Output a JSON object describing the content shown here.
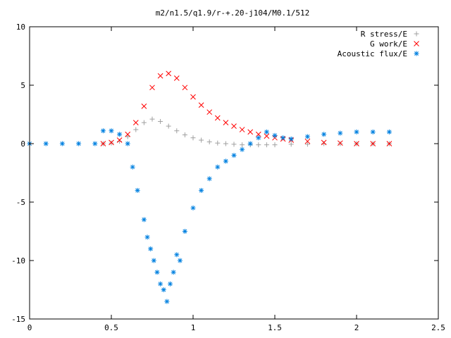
{
  "chart_data": {
    "type": "scatter",
    "title": "m2/n1.5/q1.9/r-+.20-j104/M0.1/512",
    "xlabel": "",
    "ylabel": "",
    "xlim": [
      0,
      2.5
    ],
    "ylim": [
      -15,
      10
    ],
    "xticks": [
      "0",
      "0.5",
      "1",
      "1.5",
      "2",
      "2.5"
    ],
    "yticks": [
      "10",
      "5",
      "0",
      "-5",
      "-10",
      "-15"
    ],
    "grid": false,
    "legend_position": "top-right",
    "series": [
      {
        "name": "R stress/E",
        "marker": "+",
        "color": "#a0a0a0",
        "x": [
          0.45,
          0.5,
          0.55,
          0.6,
          0.65,
          0.7,
          0.75,
          0.8,
          0.85,
          0.9,
          0.95,
          1.0,
          1.05,
          1.1,
          1.15,
          1.2,
          1.25,
          1.3,
          1.35,
          1.4,
          1.45,
          1.5,
          1.6,
          1.7,
          1.8,
          1.9,
          2.0,
          2.1,
          2.2
        ],
        "y": [
          0.0,
          0.05,
          0.2,
          0.6,
          1.2,
          1.8,
          2.1,
          1.9,
          1.5,
          1.1,
          0.75,
          0.5,
          0.3,
          0.15,
          0.05,
          0.0,
          -0.05,
          -0.1,
          -0.1,
          -0.1,
          -0.1,
          -0.1,
          -0.05,
          -0.05,
          0.0,
          0.0,
          0.0,
          0.0,
          0.0
        ]
      },
      {
        "name": "G work/E",
        "marker": "x",
        "color": "#ff0000",
        "x": [
          0.45,
          0.5,
          0.55,
          0.6,
          0.65,
          0.7,
          0.75,
          0.8,
          0.85,
          0.9,
          0.95,
          1.0,
          1.05,
          1.1,
          1.15,
          1.2,
          1.25,
          1.3,
          1.35,
          1.4,
          1.45,
          1.5,
          1.55,
          1.6,
          1.7,
          1.8,
          1.9,
          2.0,
          2.1,
          2.2
        ],
        "y": [
          0.0,
          0.1,
          0.3,
          0.8,
          1.8,
          3.2,
          4.8,
          5.8,
          6.0,
          5.6,
          4.8,
          4.0,
          3.3,
          2.7,
          2.2,
          1.8,
          1.5,
          1.2,
          1.0,
          0.8,
          0.65,
          0.5,
          0.4,
          0.3,
          0.2,
          0.1,
          0.05,
          0.0,
          0.0,
          0.0
        ]
      },
      {
        "name": "Acoustic flux/E",
        "marker": "*",
        "color": "#0080e0",
        "x": [
          0.0,
          0.1,
          0.2,
          0.3,
          0.4,
          0.45,
          0.5,
          0.55,
          0.6,
          0.63,
          0.66,
          0.7,
          0.72,
          0.74,
          0.76,
          0.78,
          0.8,
          0.82,
          0.84,
          0.86,
          0.88,
          0.9,
          0.92,
          0.95,
          1.0,
          1.05,
          1.1,
          1.15,
          1.2,
          1.25,
          1.3,
          1.35,
          1.4,
          1.45,
          1.5,
          1.55,
          1.6,
          1.7,
          1.8,
          1.9,
          2.0,
          2.1,
          2.2
        ],
        "y": [
          0.0,
          0.0,
          0.0,
          0.0,
          0.0,
          1.1,
          1.1,
          0.8,
          0.0,
          -2.0,
          -4.0,
          -6.5,
          -8.0,
          -9.0,
          -10.0,
          -11.0,
          -12.0,
          -12.5,
          -13.5,
          -12.0,
          -11.0,
          -9.5,
          -10.0,
          -7.5,
          -5.5,
          -4.0,
          -3.0,
          -2.0,
          -1.5,
          -1.0,
          -0.5,
          0.0,
          0.5,
          1.0,
          0.7,
          0.5,
          0.4,
          0.6,
          0.8,
          0.9,
          1.0,
          1.0,
          1.0
        ]
      }
    ]
  }
}
